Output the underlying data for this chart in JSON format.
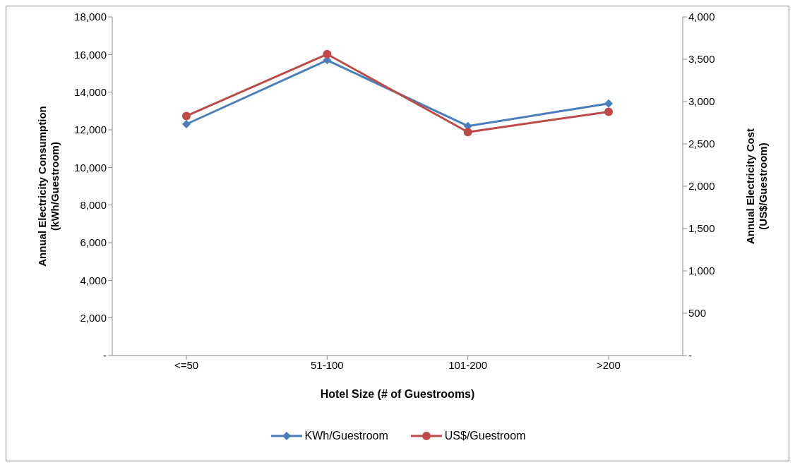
{
  "chart_data": {
    "type": "line",
    "xlabel": "Hotel Size (# of Guestrooms)",
    "ylabel": "Annual Electricity Consumption\n(kWh/Guestroom)",
    "y2label": "Annual Electricity Cost\n(US$/Guestroom)",
    "categories": [
      "<=50",
      "51-100",
      "101-200",
      ">200"
    ],
    "series": [
      {
        "name": "KWh/Guestroom",
        "color": "#4a7ebb",
        "marker": "diamond",
        "values": [
          12300,
          15700,
          12200,
          13400
        ]
      },
      {
        "name": "US$/Guestroom",
        "color": "#be4b48",
        "marker": "circle",
        "axis": "y2",
        "values": [
          2830,
          3560,
          2640,
          2880
        ]
      }
    ],
    "ylim": [
      0,
      18000
    ],
    "yticks": [
      {
        "value": 0,
        "label": "-"
      },
      {
        "value": 2000,
        "label": "2,000"
      },
      {
        "value": 4000,
        "label": "4,000"
      },
      {
        "value": 6000,
        "label": "6,000"
      },
      {
        "value": 8000,
        "label": "8,000"
      },
      {
        "value": 10000,
        "label": "10,000"
      },
      {
        "value": 12000,
        "label": "12,000"
      },
      {
        "value": 14000,
        "label": "14,000"
      },
      {
        "value": 16000,
        "label": "16,000"
      },
      {
        "value": 18000,
        "label": "18,000"
      }
    ],
    "y2lim": [
      0,
      4000
    ],
    "y2ticks": [
      {
        "value": 0,
        "label": "-"
      },
      500,
      {
        "value": 1000,
        "label": "1,000"
      },
      {
        "value": 1500,
        "label": "1,500"
      },
      {
        "value": 2000,
        "label": "2,000"
      },
      {
        "value": 2500,
        "label": "2,500"
      },
      {
        "value": 3000,
        "label": "3,000"
      },
      {
        "value": 3500,
        "label": "3,500"
      },
      {
        "value": 4000,
        "label": "4,000"
      }
    ],
    "legend": "bottom",
    "line_style": "solid"
  }
}
